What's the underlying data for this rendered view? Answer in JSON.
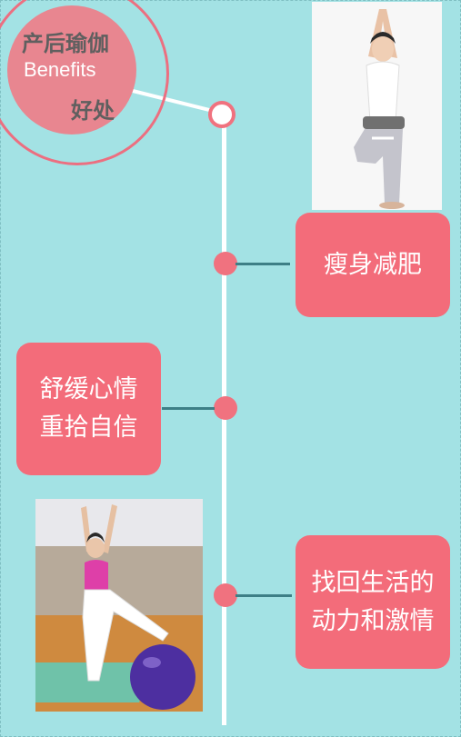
{
  "title": {
    "line1": "产后瑜伽",
    "line2": "Benefits",
    "line3": "好处"
  },
  "benefits": [
    {
      "lines": [
        "瘦身减肥"
      ]
    },
    {
      "lines": [
        "舒缓心情",
        "重拾自信"
      ]
    },
    {
      "lines": [
        "找回生活的",
        "动力和激情"
      ]
    }
  ],
  "colors": {
    "background": "#a3e2e4",
    "accent": "#f36c7a",
    "line": "#ffffff",
    "connector": "#3d7f86"
  }
}
